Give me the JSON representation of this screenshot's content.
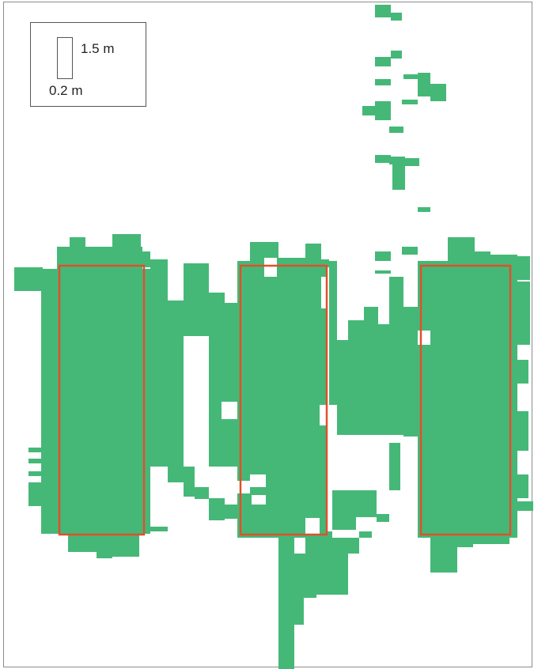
{
  "colors": {
    "occupancy": "#45b878",
    "target_outline": "#e0502a",
    "frame": "#8c8c8c",
    "background": "#ffffff"
  },
  "legend": {
    "height_label": "1.5 m",
    "width_label": "0.2 m"
  },
  "targets": [
    {
      "name": "target-box-left"
    },
    {
      "name": "target-box-middle"
    },
    {
      "name": "target-box-right"
    }
  ]
}
